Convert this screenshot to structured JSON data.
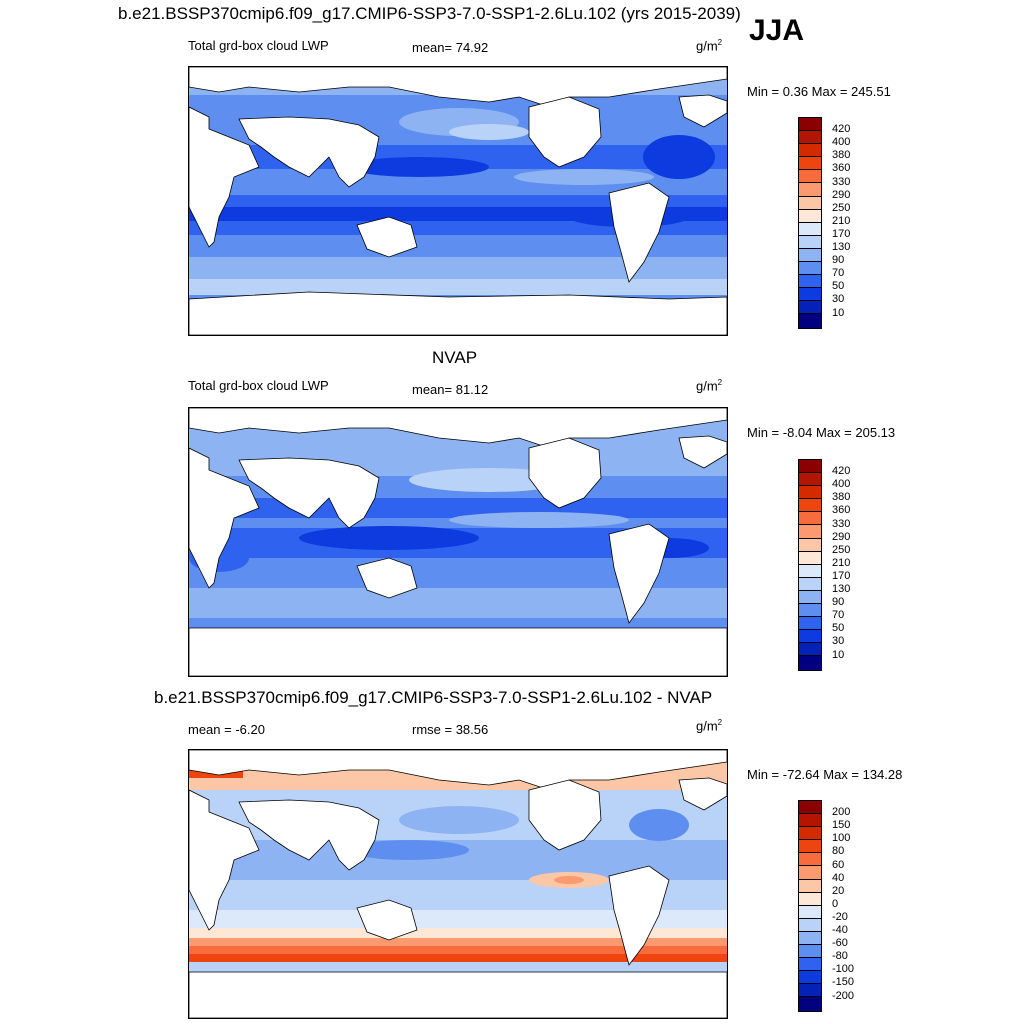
{
  "header": {
    "title": "b.e21.BSSP370cmip6.f09_g17.CMIP6-SSP3-7.0-SSP1-2.6Lu.102 (yrs 2015-2039)",
    "season": "JJA"
  },
  "panels": [
    {
      "id": "model",
      "subtitle": "",
      "left_label": "Total grd-box cloud LWP",
      "center_label": "mean=  74.92",
      "units_base": "g/m",
      "units_exp": "2",
      "minmax": "Min =   0.36 Max = 245.51"
    },
    {
      "id": "obs",
      "subtitle": "NVAP",
      "left_label": "Total grd-box cloud LWP",
      "center_label": "mean=  81.12",
      "units_base": "g/m",
      "units_exp": "2",
      "minmax": "Min =  -8.04 Max = 205.13"
    },
    {
      "id": "diff",
      "subtitle": "b.e21.BSSP370cmip6.f09_g17.CMIP6-SSP3-7.0-SSP1-2.6Lu.102 - NVAP",
      "left_label": "mean =  -6.20",
      "center_label": "rmse =  38.56",
      "units_base": "g/m",
      "units_exp": "2",
      "minmax": "Min = -72.64 Max = 134.28"
    }
  ],
  "colorbars": {
    "abs": {
      "labels": [
        "420",
        "400",
        "380",
        "360",
        "330",
        "290",
        "250",
        "210",
        "170",
        "130",
        "90",
        "70",
        "50",
        "30",
        "10"
      ],
      "colors": [
        "#8b0000",
        "#b31500",
        "#d42a00",
        "#ee4410",
        "#f76b3c",
        "#fb9a70",
        "#fcc7a6",
        "#fde7d6",
        "#dce9fb",
        "#b9d2f7",
        "#8eb3f2",
        "#5e8ff0",
        "#2f63ef",
        "#0d3be0",
        "#0522b8",
        "#000080"
      ]
    },
    "diff": {
      "labels": [
        "200",
        "150",
        "100",
        "80",
        "60",
        "40",
        "20",
        "0",
        "-20",
        "-40",
        "-60",
        "-80",
        "-100",
        "-150",
        "-200"
      ],
      "colors": [
        "#8b0000",
        "#b31500",
        "#d42a00",
        "#ee4410",
        "#f76b3c",
        "#fb9a70",
        "#fcc7a6",
        "#fde7d6",
        "#dce9fb",
        "#b9d2f7",
        "#8eb3f2",
        "#5e8ff0",
        "#2f63ef",
        "#0d3be0",
        "#0522b8",
        "#000080"
      ]
    }
  },
  "chart_data": {
    "type": "map",
    "projection": "cylindrical equidistant, Pacific-centered",
    "variable": "Total grd-box cloud LWP",
    "units": "g/m2",
    "season": "JJA",
    "panels": [
      {
        "name": "model",
        "mean": 74.92,
        "min": 0.36,
        "max": 245.51
      },
      {
        "name": "NVAP",
        "mean": 81.12,
        "min": -8.04,
        "max": 205.13
      },
      {
        "name": "model - NVAP",
        "mean": -6.2,
        "rmse": 38.56,
        "min": -72.64,
        "max": 134.28
      }
    ],
    "contour_levels_abs": [
      10,
      30,
      50,
      70,
      90,
      130,
      170,
      210,
      250,
      290,
      330,
      360,
      380,
      400,
      420
    ],
    "contour_levels_diff": [
      -200,
      -150,
      -100,
      -80,
      -60,
      -40,
      -20,
      0,
      20,
      40,
      60,
      80,
      100,
      150,
      200
    ]
  }
}
